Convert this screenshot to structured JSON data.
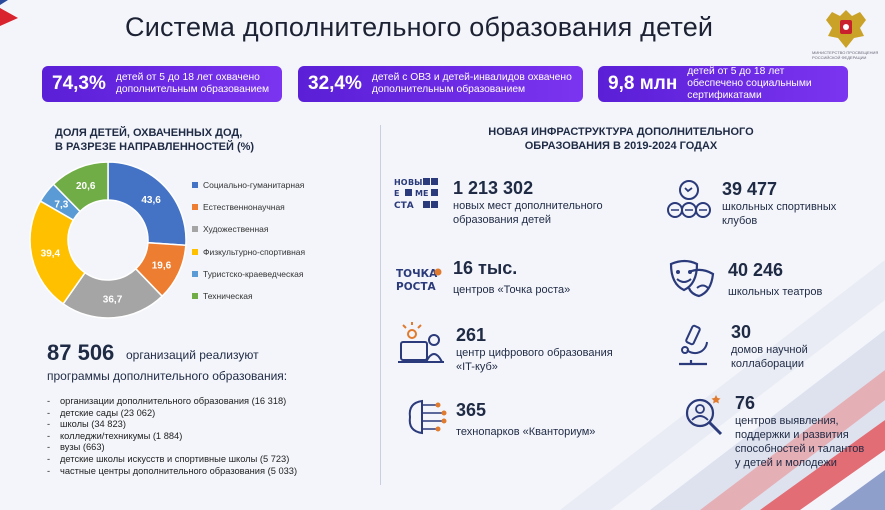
{
  "title": "Система дополнительного образования детей",
  "emblem_text": "МИНИСТЕРСТВО ПРОСВЕЩЕНИЯ РОССИЙСКОЙ ФЕДЕРАЦИИ",
  "stats": [
    {
      "value": "74,3%",
      "text": "детей от 5 до 18 лет охвачено дополнительным образованием"
    },
    {
      "value": "32,4%",
      "text": "детей с ОВЗ и детей-инвалидов охвачено дополнительным образованием"
    },
    {
      "value": "9,8 млн",
      "text": "детей от 5 до 18 лет обеспечено социальными сертификатами"
    }
  ],
  "chart_title_1": "ДОЛЯ ДЕТЕЙ, ОХВАЧЕННЫХ ДОД,",
  "chart_title_2": "В РАЗРЕЗЕ НАПРАВЛЕННОСТЕЙ (%)",
  "chart_data": {
    "type": "pie",
    "title": "ДОЛЯ ДЕТЕЙ, ОХВАЧЕННЫХ ДОД, В РАЗРЕЗЕ НАПРАВЛЕННОСТЕЙ (%)",
    "categories": [
      "Социально-гуманитарная",
      "Естественнонаучная",
      "Художественная",
      "Физкультурно-спортивная",
      "Туристско-краеведческая",
      "Техническая"
    ],
    "values": [
      43.6,
      19.6,
      36.7,
      39.4,
      7.3,
      20.6
    ],
    "labels": [
      "43,6",
      "19,6",
      "36,7",
      "39,4",
      "7,3",
      "20,6"
    ],
    "colors": [
      "#4472c4",
      "#ed7d31",
      "#a5a5a5",
      "#ffc000",
      "#5b9bd5",
      "#70ad47"
    ],
    "legend_position": "right"
  },
  "orgs": {
    "count": "87 506",
    "text1": "организаций реализуют",
    "text2": "программы дополнительного образования:",
    "items": [
      "организации дополнительного образования (16 318)",
      "детские сады (23 062)",
      "школы (34 823)",
      "колледжи/техникумы (1 884)",
      "вузы (663)",
      "детские школы искусств и спортивные школы (5 723)",
      "частные центры дополнительного образования (5 033)"
    ]
  },
  "infra_title_1": "НОВАЯ ИНФРАСТРУКТУРА ДОПОЛНИТЕЛЬНОГО",
  "infra_title_2": "ОБРАЗОВАНИЯ В 2019-2024 ГОДАХ",
  "infra": [
    {
      "num": "1 213 302",
      "desc": "новых мест дополнительного образования детей",
      "icon": "new-places-icon"
    },
    {
      "num": "39 477",
      "desc": "школьных спортивных клубов",
      "icon": "sport-icon"
    },
    {
      "num": "16 тыс.",
      "desc": "центров «Точка роста»",
      "icon": "tochka-rosta-logo"
    },
    {
      "num": "40 246",
      "desc": "школьных театров",
      "icon": "theatre-masks-icon"
    },
    {
      "num": "261",
      "desc": "центр цифрового образования «IT-куб»",
      "icon": "computer-user-icon"
    },
    {
      "num": "30",
      "desc": "домов научной коллаборации",
      "icon": "microscope-icon"
    },
    {
      "num": "365",
      "desc": "технопарков «Кванториум»",
      "icon": "circuit-brain-icon"
    },
    {
      "num": "76",
      "desc": "центров выявления, поддержки и развития способностей и талантов у детей и молодежи",
      "icon": "talent-search-icon"
    }
  ],
  "tochka_logo_1": "ТОЧКА",
  "tochka_logo_2": "РОСТА",
  "newplaces_logo": [
    "НО",
    "ВЫ",
    "Е",
    "МЕ",
    "СТА"
  ]
}
